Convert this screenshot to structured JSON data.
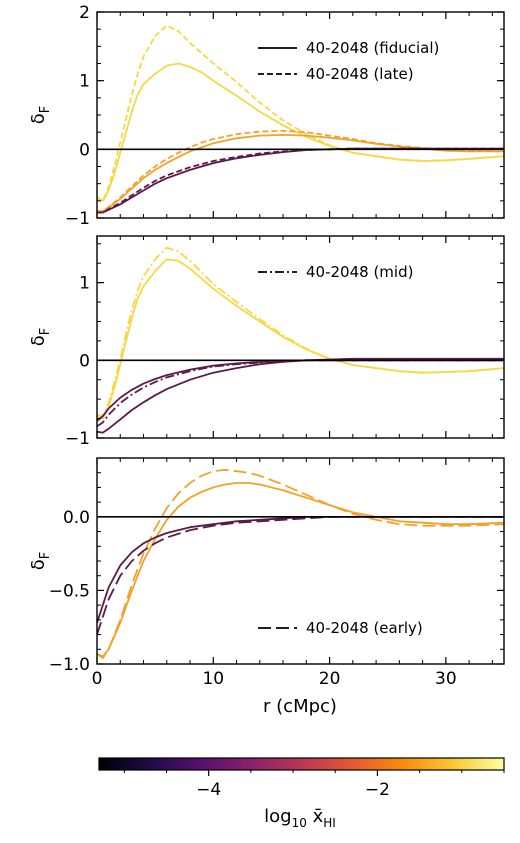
{
  "chart_data": [
    {
      "type": "line",
      "panel": "top",
      "ylabel": "δF",
      "ylim": [
        -1.0,
        2.0
      ],
      "yticks": [
        -1,
        0,
        1,
        2
      ],
      "ytick_labels": [
        "−1",
        "0",
        "1",
        "2"
      ],
      "xlim": [
        0,
        35
      ],
      "legend": [
        {
          "label": "40-2048 (fiducial)",
          "dash": "solid"
        },
        {
          "label": "40-2048 (late)",
          "dash": "dashed"
        }
      ],
      "legend_position": "top-right",
      "series": [
        {
          "color": "#f6d746",
          "dash": "solid",
          "x": [
            0,
            0.5,
            1,
            1.5,
            2,
            2.5,
            3,
            3.5,
            4,
            5,
            6,
            7,
            8,
            9,
            10,
            12,
            14,
            16,
            18,
            20,
            22,
            24,
            26,
            28,
            30,
            32,
            35
          ],
          "y": [
            -0.72,
            -0.75,
            -0.6,
            -0.35,
            -0.05,
            0.25,
            0.55,
            0.8,
            0.95,
            1.1,
            1.22,
            1.25,
            1.2,
            1.12,
            1.0,
            0.78,
            0.55,
            0.35,
            0.18,
            0.05,
            -0.05,
            -0.1,
            -0.15,
            -0.17,
            -0.16,
            -0.14,
            -0.1
          ]
        },
        {
          "color": "#f6d746",
          "dash": "dashed",
          "x": [
            0,
            0.5,
            1,
            1.5,
            2,
            2.5,
            3,
            3.5,
            4,
            5,
            6,
            7,
            8,
            9,
            10,
            12,
            14,
            16,
            18,
            20,
            22,
            24,
            26,
            28,
            30,
            32,
            35
          ],
          "y": [
            -0.7,
            -0.75,
            -0.55,
            -0.25,
            0.1,
            0.45,
            0.8,
            1.1,
            1.35,
            1.65,
            1.8,
            1.72,
            1.55,
            1.4,
            1.25,
            0.98,
            0.68,
            0.42,
            0.22,
            0.06,
            -0.05,
            -0.1,
            -0.15,
            -0.17,
            -0.16,
            -0.14,
            -0.1
          ]
        },
        {
          "color": "#f3a12a",
          "dash": "solid",
          "x": [
            0,
            0.5,
            1,
            2,
            3,
            4,
            5,
            6,
            7,
            8,
            9,
            10,
            12,
            14,
            16,
            18,
            20,
            22,
            24,
            26,
            28,
            30,
            32,
            35
          ],
          "y": [
            -0.9,
            -0.9,
            -0.85,
            -0.72,
            -0.57,
            -0.42,
            -0.3,
            -0.2,
            -0.11,
            -0.03,
            0.03,
            0.09,
            0.16,
            0.2,
            0.21,
            0.2,
            0.17,
            0.13,
            0.08,
            0.04,
            0.01,
            -0.02,
            -0.03,
            -0.03
          ]
        },
        {
          "color": "#f3a12a",
          "dash": "dashed",
          "x": [
            0,
            0.5,
            1,
            2,
            3,
            4,
            5,
            6,
            7,
            8,
            9,
            10,
            12,
            14,
            16,
            18,
            20,
            22,
            24,
            26,
            28,
            30,
            32,
            35
          ],
          "y": [
            -0.9,
            -0.9,
            -0.84,
            -0.7,
            -0.54,
            -0.38,
            -0.25,
            -0.14,
            -0.05,
            0.03,
            0.1,
            0.15,
            0.22,
            0.26,
            0.27,
            0.25,
            0.2,
            0.15,
            0.09,
            0.05,
            0.02,
            -0.01,
            -0.02,
            -0.03
          ]
        },
        {
          "color": "#5c1a4a",
          "dash": "solid",
          "x": [
            0,
            0.5,
            1,
            2,
            3,
            4,
            5,
            6,
            8,
            10,
            12,
            14,
            16,
            18,
            20,
            22,
            24,
            26,
            28,
            30,
            32,
            35
          ],
          "y": [
            -0.92,
            -0.92,
            -0.88,
            -0.8,
            -0.7,
            -0.6,
            -0.5,
            -0.42,
            -0.3,
            -0.2,
            -0.13,
            -0.08,
            -0.04,
            -0.01,
            0.0,
            0.01,
            0.01,
            0.01,
            0.01,
            0.01,
            0.01,
            0.01
          ]
        },
        {
          "color": "#5c1a4a",
          "dash": "dashed",
          "x": [
            0,
            0.5,
            1,
            2,
            3,
            4,
            5,
            6,
            8,
            10,
            12,
            14,
            16,
            18,
            20,
            22,
            24,
            26,
            28,
            30,
            32,
            35
          ],
          "y": [
            -0.92,
            -0.92,
            -0.87,
            -0.78,
            -0.67,
            -0.56,
            -0.46,
            -0.38,
            -0.26,
            -0.17,
            -0.11,
            -0.06,
            -0.03,
            -0.01,
            0.0,
            0.01,
            0.01,
            0.01,
            0.01,
            0.01,
            0.01,
            0.01
          ]
        }
      ]
    },
    {
      "type": "line",
      "panel": "middle",
      "ylabel": "δF",
      "ylim": [
        -1.0,
        1.6
      ],
      "yticks": [
        -1,
        0,
        1
      ],
      "ytick_labels": [
        "−1",
        "0",
        "1"
      ],
      "xlim": [
        0,
        35
      ],
      "legend": [
        {
          "label": "40-2048 (mid)",
          "dash": "dashdot"
        }
      ],
      "legend_position": "top-right",
      "series": [
        {
          "color": "#f6d746",
          "dash": "solid",
          "x": [
            0,
            0.5,
            1,
            1.5,
            2,
            2.5,
            3,
            3.5,
            4,
            5,
            6,
            7,
            8,
            9,
            10,
            12,
            14,
            16,
            18,
            20,
            22,
            24,
            26,
            28,
            30,
            32,
            35
          ],
          "y": [
            -0.72,
            -0.75,
            -0.6,
            -0.35,
            -0.05,
            0.25,
            0.55,
            0.8,
            0.95,
            1.15,
            1.3,
            1.28,
            1.18,
            1.05,
            0.92,
            0.7,
            0.5,
            0.3,
            0.14,
            0.02,
            -0.06,
            -0.1,
            -0.14,
            -0.16,
            -0.15,
            -0.14,
            -0.1
          ]
        },
        {
          "color": "#f6d746",
          "dash": "dashdot",
          "x": [
            0,
            0.5,
            1,
            1.5,
            2,
            2.5,
            3,
            3.5,
            4,
            5,
            6,
            7,
            8,
            9,
            10,
            12,
            14,
            16,
            18,
            20,
            22,
            24,
            26,
            28,
            30,
            32,
            35
          ],
          "y": [
            -0.7,
            -0.72,
            -0.55,
            -0.28,
            0.02,
            0.35,
            0.65,
            0.9,
            1.08,
            1.3,
            1.45,
            1.4,
            1.28,
            1.13,
            0.98,
            0.75,
            0.53,
            0.32,
            0.15,
            0.02,
            -0.06,
            -0.1,
            -0.14,
            -0.16,
            -0.15,
            -0.14,
            -0.1
          ]
        },
        {
          "color": "#5c1a4a",
          "dash": "solid",
          "x": [
            0,
            0.5,
            1,
            2,
            3,
            4,
            5,
            6,
            8,
            10,
            12,
            14,
            16,
            18,
            20,
            22,
            24,
            26,
            28,
            30,
            32,
            35
          ],
          "y": [
            -0.92,
            -0.93,
            -0.88,
            -0.76,
            -0.64,
            -0.54,
            -0.45,
            -0.37,
            -0.25,
            -0.16,
            -0.1,
            -0.05,
            -0.02,
            0.0,
            0.01,
            0.02,
            0.02,
            0.02,
            0.02,
            0.02,
            0.02,
            0.02
          ]
        },
        {
          "color": "#5c1a4a",
          "dash": "solid",
          "x": [
            0,
            0.5,
            1,
            2,
            3,
            4,
            5,
            6,
            8,
            10,
            12,
            14,
            16,
            18,
            20,
            22,
            24,
            26,
            28,
            30,
            32,
            35
          ],
          "y": [
            -0.78,
            -0.72,
            -0.62,
            -0.48,
            -0.38,
            -0.3,
            -0.24,
            -0.19,
            -0.12,
            -0.07,
            -0.04,
            -0.02,
            -0.01,
            0.0,
            0.0,
            0.0,
            0.0,
            0.0,
            0.0,
            0.0,
            0.0,
            0.0
          ]
        },
        {
          "color": "#5c1a4a",
          "dash": "dashdot",
          "x": [
            0,
            0.5,
            1,
            2,
            3,
            4,
            5,
            6,
            8,
            10,
            12,
            14,
            16,
            18,
            20,
            22,
            24,
            26,
            28,
            30,
            32,
            35
          ],
          "y": [
            -0.85,
            -0.8,
            -0.7,
            -0.55,
            -0.44,
            -0.35,
            -0.28,
            -0.22,
            -0.14,
            -0.08,
            -0.05,
            -0.03,
            -0.01,
            0.0,
            0.0,
            0.0,
            0.0,
            0.0,
            0.0,
            0.0,
            0.0,
            0.0
          ]
        }
      ]
    },
    {
      "type": "line",
      "panel": "bottom",
      "ylabel": "δF",
      "xlabel": "r (cMpc)",
      "ylim": [
        -1.0,
        0.4
      ],
      "yticks": [
        -1.0,
        -0.5,
        0.0
      ],
      "ytick_labels": [
        "−1.0",
        "−0.5",
        "0.0"
      ],
      "xlim": [
        0,
        35
      ],
      "xticks": [
        0,
        10,
        20,
        30
      ],
      "xtick_labels": [
        "0",
        "10",
        "20",
        "30"
      ],
      "legend": [
        {
          "label": "40-2048 (early)",
          "dash": "longdash"
        }
      ],
      "legend_position": "bottom-right",
      "series": [
        {
          "color": "#f3a12a",
          "dash": "solid",
          "x": [
            0,
            0.5,
            1,
            2,
            3,
            4,
            5,
            6,
            7,
            8,
            9,
            10,
            11,
            12,
            13,
            14,
            15,
            16,
            18,
            20,
            22,
            24,
            26,
            28,
            30,
            32,
            35
          ],
          "y": [
            -0.93,
            -0.95,
            -0.9,
            -0.72,
            -0.5,
            -0.3,
            -0.15,
            -0.02,
            0.07,
            0.13,
            0.17,
            0.2,
            0.22,
            0.23,
            0.23,
            0.22,
            0.2,
            0.18,
            0.13,
            0.08,
            0.03,
            0.0,
            -0.03,
            -0.04,
            -0.05,
            -0.05,
            -0.04
          ]
        },
        {
          "color": "#f3a12a",
          "dash": "longdash",
          "x": [
            0,
            0.5,
            1,
            2,
            3,
            4,
            5,
            6,
            7,
            8,
            9,
            10,
            11,
            12,
            13,
            14,
            15,
            16,
            18,
            20,
            22,
            24,
            26,
            28,
            30,
            32,
            35
          ],
          "y": [
            -0.93,
            -0.96,
            -0.9,
            -0.7,
            -0.46,
            -0.25,
            -0.08,
            0.06,
            0.16,
            0.23,
            0.28,
            0.31,
            0.32,
            0.31,
            0.3,
            0.28,
            0.25,
            0.22,
            0.15,
            0.08,
            0.02,
            -0.02,
            -0.05,
            -0.06,
            -0.06,
            -0.06,
            -0.05
          ]
        },
        {
          "color": "#5c1a4a",
          "dash": "solid",
          "x": [
            0,
            0.5,
            1,
            2,
            3,
            4,
            5,
            6,
            8,
            10,
            12,
            14,
            16,
            18,
            20,
            22,
            24,
            26,
            28,
            30,
            32,
            35
          ],
          "y": [
            -0.72,
            -0.6,
            -0.48,
            -0.33,
            -0.24,
            -0.18,
            -0.14,
            -0.11,
            -0.07,
            -0.05,
            -0.03,
            -0.02,
            -0.01,
            0.0,
            0.0,
            0.0,
            0.0,
            0.0,
            0.0,
            0.0,
            0.0,
            0.0
          ]
        },
        {
          "color": "#5c1a4a",
          "dash": "longdash",
          "x": [
            0,
            0.5,
            1,
            2,
            3,
            4,
            5,
            6,
            8,
            10,
            12,
            14,
            16,
            18,
            20,
            22,
            24,
            26,
            28,
            30,
            32,
            35
          ],
          "y": [
            -0.8,
            -0.68,
            -0.56,
            -0.4,
            -0.3,
            -0.23,
            -0.18,
            -0.14,
            -0.09,
            -0.06,
            -0.04,
            -0.03,
            -0.02,
            -0.01,
            0.0,
            0.0,
            0.0,
            0.0,
            0.0,
            0.0,
            0.0,
            0.0
          ]
        }
      ]
    }
  ],
  "colorbar": {
    "label": "log10 x̄HI",
    "label_main": "log",
    "label_sub": "10",
    "label_var": "x̄",
    "label_var_sub": "HI",
    "ticks": [
      -4,
      -2
    ],
    "tick_labels": [
      "−4",
      "−2"
    ],
    "range": [
      -5.3,
      -0.5
    ],
    "colormap": "inferno",
    "colors": [
      "#000004",
      "#1f0c48",
      "#550f6d",
      "#88226a",
      "#ba3655",
      "#e35933",
      "#f98c0a",
      "#f9c932",
      "#fcffa4"
    ]
  }
}
